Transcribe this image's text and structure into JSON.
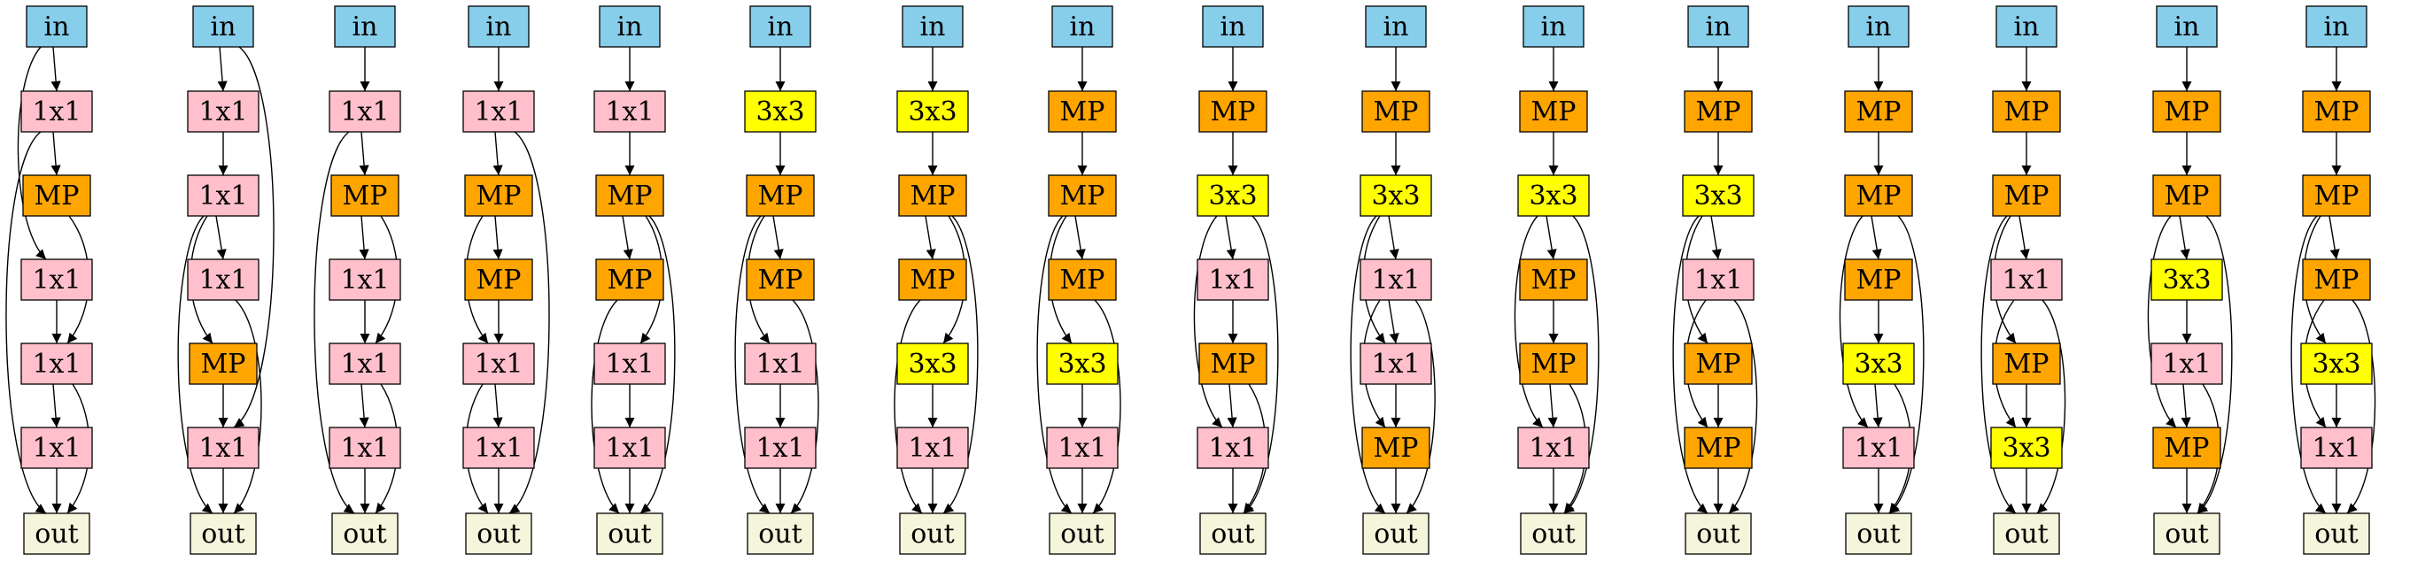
{
  "node_colors": {
    "in": "#87ceeb",
    "1x1": "#ffc0cb",
    "MP": "#ffa500",
    "3x3": "#ffff00",
    "out": "#f5f5dc"
  },
  "graphs": [
    {
      "nodes": [
        "in",
        "1x1",
        "MP",
        "1x1",
        "1x1",
        "1x1",
        "out"
      ],
      "edges": [
        [
          0,
          1
        ],
        [
          0,
          3
        ],
        [
          1,
          2
        ],
        [
          1,
          6
        ],
        [
          2,
          4
        ],
        [
          3,
          4
        ],
        [
          4,
          5
        ],
        [
          4,
          6
        ],
        [
          5,
          6
        ]
      ]
    },
    {
      "nodes": [
        "in",
        "1x1",
        "1x1",
        "1x1",
        "MP",
        "1x1",
        "out"
      ],
      "edges": [
        [
          0,
          1
        ],
        [
          0,
          5
        ],
        [
          1,
          2
        ],
        [
          2,
          3
        ],
        [
          2,
          4
        ],
        [
          2,
          6
        ],
        [
          3,
          6
        ],
        [
          4,
          5
        ],
        [
          5,
          6
        ]
      ]
    },
    {
      "nodes": [
        "in",
        "1x1",
        "MP",
        "1x1",
        "1x1",
        "1x1",
        "out"
      ],
      "edges": [
        [
          0,
          1
        ],
        [
          1,
          2
        ],
        [
          1,
          6
        ],
        [
          2,
          3
        ],
        [
          2,
          4
        ],
        [
          3,
          4
        ],
        [
          4,
          5
        ],
        [
          4,
          6
        ],
        [
          5,
          6
        ]
      ]
    },
    {
      "nodes": [
        "in",
        "1x1",
        "MP",
        "MP",
        "1x1",
        "1x1",
        "out"
      ],
      "edges": [
        [
          0,
          1
        ],
        [
          1,
          2
        ],
        [
          1,
          6
        ],
        [
          2,
          3
        ],
        [
          2,
          4
        ],
        [
          3,
          4
        ],
        [
          4,
          5
        ],
        [
          4,
          6
        ],
        [
          5,
          6
        ]
      ]
    },
    {
      "nodes": [
        "in",
        "1x1",
        "MP",
        "MP",
        "1x1",
        "1x1",
        "out"
      ],
      "edges": [
        [
          0,
          1
        ],
        [
          1,
          2
        ],
        [
          2,
          3
        ],
        [
          2,
          4
        ],
        [
          2,
          6
        ],
        [
          3,
          6
        ],
        [
          4,
          5
        ],
        [
          5,
          6
        ]
      ]
    },
    {
      "nodes": [
        "in",
        "3x3",
        "MP",
        "MP",
        "1x1",
        "1x1",
        "out"
      ],
      "edges": [
        [
          0,
          1
        ],
        [
          1,
          2
        ],
        [
          2,
          3
        ],
        [
          2,
          4
        ],
        [
          2,
          6
        ],
        [
          3,
          6
        ],
        [
          4,
          5
        ],
        [
          5,
          6
        ]
      ]
    },
    {
      "nodes": [
        "in",
        "3x3",
        "MP",
        "MP",
        "3x3",
        "1x1",
        "out"
      ],
      "edges": [
        [
          0,
          1
        ],
        [
          1,
          2
        ],
        [
          2,
          3
        ],
        [
          2,
          4
        ],
        [
          2,
          6
        ],
        [
          3,
          6
        ],
        [
          4,
          5
        ],
        [
          5,
          6
        ]
      ]
    },
    {
      "nodes": [
        "in",
        "MP",
        "MP",
        "MP",
        "3x3",
        "1x1",
        "out"
      ],
      "edges": [
        [
          0,
          1
        ],
        [
          1,
          2
        ],
        [
          2,
          3
        ],
        [
          2,
          4
        ],
        [
          2,
          6
        ],
        [
          3,
          6
        ],
        [
          4,
          5
        ],
        [
          5,
          6
        ]
      ]
    },
    {
      "nodes": [
        "in",
        "MP",
        "3x3",
        "1x1",
        "MP",
        "1x1",
        "out"
      ],
      "edges": [
        [
          0,
          1
        ],
        [
          1,
          2
        ],
        [
          2,
          3
        ],
        [
          2,
          5
        ],
        [
          2,
          6
        ],
        [
          3,
          4
        ],
        [
          4,
          5
        ],
        [
          4,
          6
        ],
        [
          5,
          6
        ]
      ]
    },
    {
      "nodes": [
        "in",
        "MP",
        "3x3",
        "1x1",
        "1x1",
        "MP",
        "out"
      ],
      "edges": [
        [
          0,
          1
        ],
        [
          1,
          2
        ],
        [
          2,
          3
        ],
        [
          2,
          4
        ],
        [
          2,
          6
        ],
        [
          3,
          4
        ],
        [
          3,
          5
        ],
        [
          3,
          6
        ],
        [
          4,
          5
        ],
        [
          5,
          6
        ]
      ]
    },
    {
      "nodes": [
        "in",
        "MP",
        "3x3",
        "MP",
        "MP",
        "1x1",
        "out"
      ],
      "edges": [
        [
          0,
          1
        ],
        [
          1,
          2
        ],
        [
          2,
          3
        ],
        [
          2,
          5
        ],
        [
          2,
          6
        ],
        [
          3,
          4
        ],
        [
          4,
          5
        ],
        [
          4,
          6
        ],
        [
          5,
          6
        ]
      ]
    },
    {
      "nodes": [
        "in",
        "MP",
        "3x3",
        "1x1",
        "MP",
        "MP",
        "out"
      ],
      "edges": [
        [
          0,
          1
        ],
        [
          1,
          2
        ],
        [
          2,
          3
        ],
        [
          2,
          4
        ],
        [
          2,
          6
        ],
        [
          3,
          5
        ],
        [
          3,
          6
        ],
        [
          4,
          5
        ],
        [
          5,
          6
        ]
      ]
    },
    {
      "nodes": [
        "in",
        "MP",
        "MP",
        "MP",
        "3x3",
        "1x1",
        "out"
      ],
      "edges": [
        [
          0,
          1
        ],
        [
          1,
          2
        ],
        [
          2,
          3
        ],
        [
          2,
          5
        ],
        [
          2,
          6
        ],
        [
          3,
          4
        ],
        [
          4,
          5
        ],
        [
          4,
          6
        ],
        [
          5,
          6
        ]
      ]
    },
    {
      "nodes": [
        "in",
        "MP",
        "MP",
        "1x1",
        "MP",
        "3x3",
        "out"
      ],
      "edges": [
        [
          0,
          1
        ],
        [
          1,
          2
        ],
        [
          2,
          3
        ],
        [
          2,
          4
        ],
        [
          2,
          6
        ],
        [
          3,
          5
        ],
        [
          3,
          6
        ],
        [
          4,
          5
        ],
        [
          5,
          6
        ]
      ]
    },
    {
      "nodes": [
        "in",
        "MP",
        "MP",
        "3x3",
        "1x1",
        "MP",
        "out"
      ],
      "edges": [
        [
          0,
          1
        ],
        [
          1,
          2
        ],
        [
          2,
          3
        ],
        [
          2,
          5
        ],
        [
          2,
          6
        ],
        [
          3,
          4
        ],
        [
          4,
          5
        ],
        [
          4,
          6
        ],
        [
          5,
          6
        ]
      ]
    },
    {
      "nodes": [
        "in",
        "MP",
        "MP",
        "MP",
        "3x3",
        "1x1",
        "out"
      ],
      "edges": [
        [
          0,
          1
        ],
        [
          1,
          2
        ],
        [
          2,
          3
        ],
        [
          2,
          4
        ],
        [
          2,
          6
        ],
        [
          3,
          5
        ],
        [
          3,
          6
        ],
        [
          4,
          5
        ],
        [
          5,
          6
        ]
      ]
    }
  ]
}
